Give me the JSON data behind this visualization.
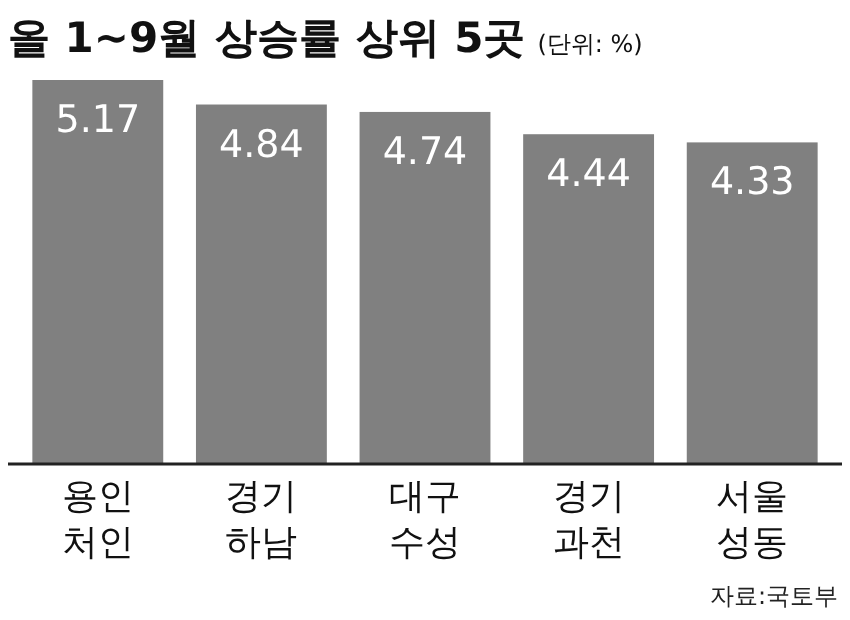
{
  "chart_data": {
    "type": "bar",
    "title": "올 1~9월 상승률 상위 5곳",
    "subtitle": "(단위: %)",
    "categories": [
      "용인\n처인",
      "경기\n하남",
      "대구\n수성",
      "경기\n과천",
      "서울\n성동"
    ],
    "values": [
      5.17,
      4.84,
      4.74,
      4.44,
      4.33
    ],
    "color": "#808080",
    "data_labels": true,
    "annotations": [
      "자료:국토부"
    ]
  }
}
